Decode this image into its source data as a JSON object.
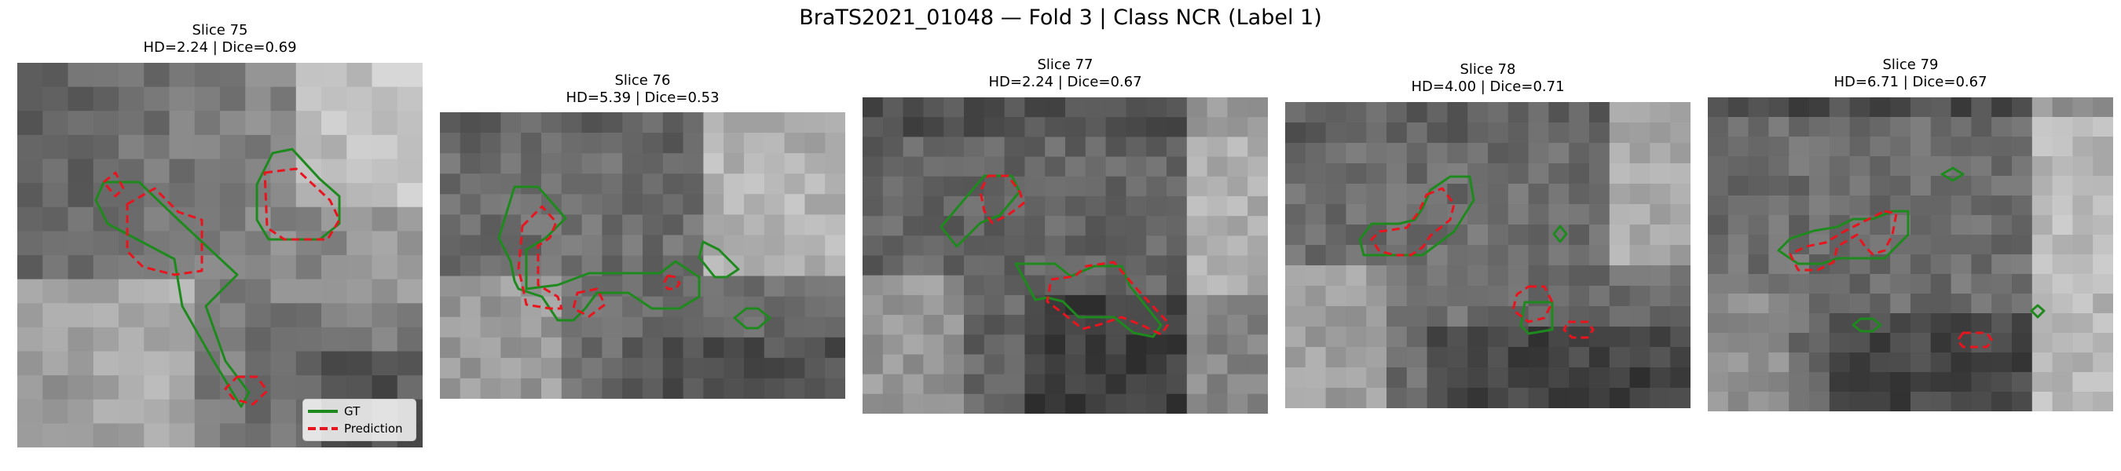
{
  "title": "BraTS2021_01048 — Fold 3 | Class NCR (Label 1)",
  "panels": [
    {
      "slice": "Slice 75",
      "metrics": "HD=2.24 | Dice=0.69"
    },
    {
      "slice": "Slice 76",
      "metrics": "HD=5.39 | Dice=0.53"
    },
    {
      "slice": "Slice 77",
      "metrics": "HD=2.24 | Dice=0.67"
    },
    {
      "slice": "Slice 78",
      "metrics": "HD=4.00 | Dice=0.71"
    },
    {
      "slice": "Slice 79",
      "metrics": "HD=6.71 | Dice=0.67"
    }
  ],
  "legend": {
    "gt_label": "GT",
    "prediction_label": "Prediction",
    "gt_color": "#1e8a1e",
    "prediction_color": "#e8141e"
  }
}
